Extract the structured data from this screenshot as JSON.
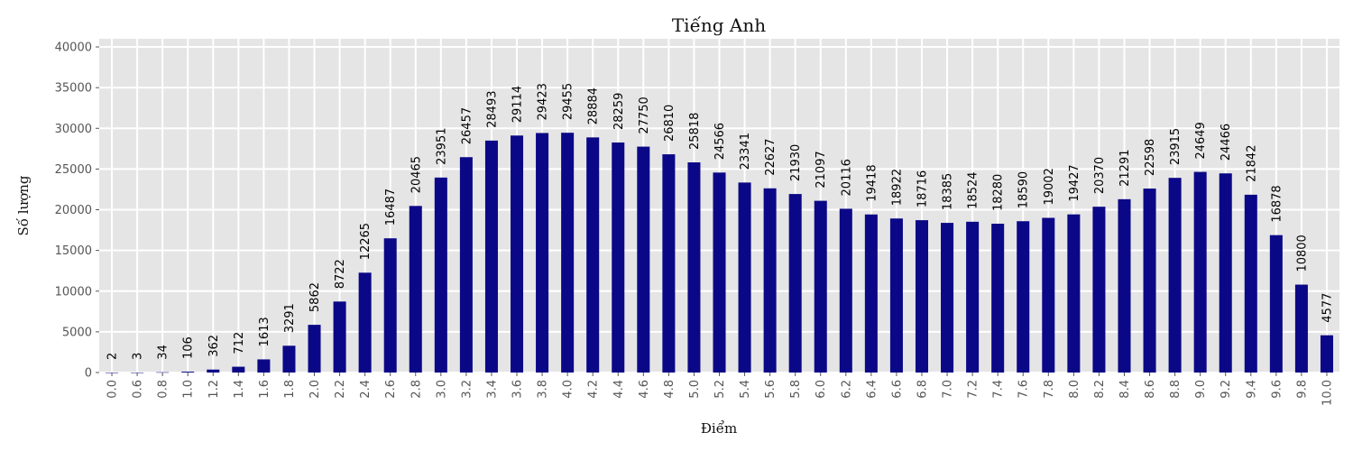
{
  "chart_data": {
    "type": "bar",
    "title": "Tiếng Anh",
    "xlabel": "Điểm",
    "ylabel": "Số lượng",
    "ylim": [
      0,
      41000
    ],
    "yticks": [
      0,
      5000,
      10000,
      15000,
      20000,
      25000,
      30000,
      35000,
      40000
    ],
    "grid": true,
    "bar_color": "#0b0887",
    "plot_background": "#e5e5e5",
    "categories": [
      "0.0",
      "0.6",
      "0.8",
      "1.0",
      "1.2",
      "1.4",
      "1.6",
      "1.8",
      "2.0",
      "2.2",
      "2.4",
      "2.6",
      "2.8",
      "3.0",
      "3.2",
      "3.4",
      "3.6",
      "3.8",
      "4.0",
      "4.2",
      "4.4",
      "4.6",
      "4.8",
      "5.0",
      "5.2",
      "5.4",
      "5.6",
      "5.8",
      "6.0",
      "6.2",
      "6.4",
      "6.6",
      "6.8",
      "7.0",
      "7.2",
      "7.4",
      "7.6",
      "7.8",
      "8.0",
      "8.2",
      "8.4",
      "8.6",
      "8.8",
      "9.0",
      "9.2",
      "9.4",
      "9.6",
      "9.8",
      "10.0"
    ],
    "values": [
      2,
      3,
      34,
      106,
      362,
      712,
      1613,
      3291,
      5862,
      8722,
      12265,
      16487,
      20465,
      23951,
      26457,
      28493,
      29114,
      29423,
      29455,
      28884,
      28259,
      27750,
      26810,
      25818,
      24566,
      23341,
      22627,
      21930,
      21097,
      20116,
      19418,
      18922,
      18716,
      18385,
      18524,
      18280,
      18590,
      19002,
      19427,
      20370,
      21291,
      22598,
      23915,
      24649,
      24466,
      21842,
      16878,
      10800,
      4577
    ]
  }
}
